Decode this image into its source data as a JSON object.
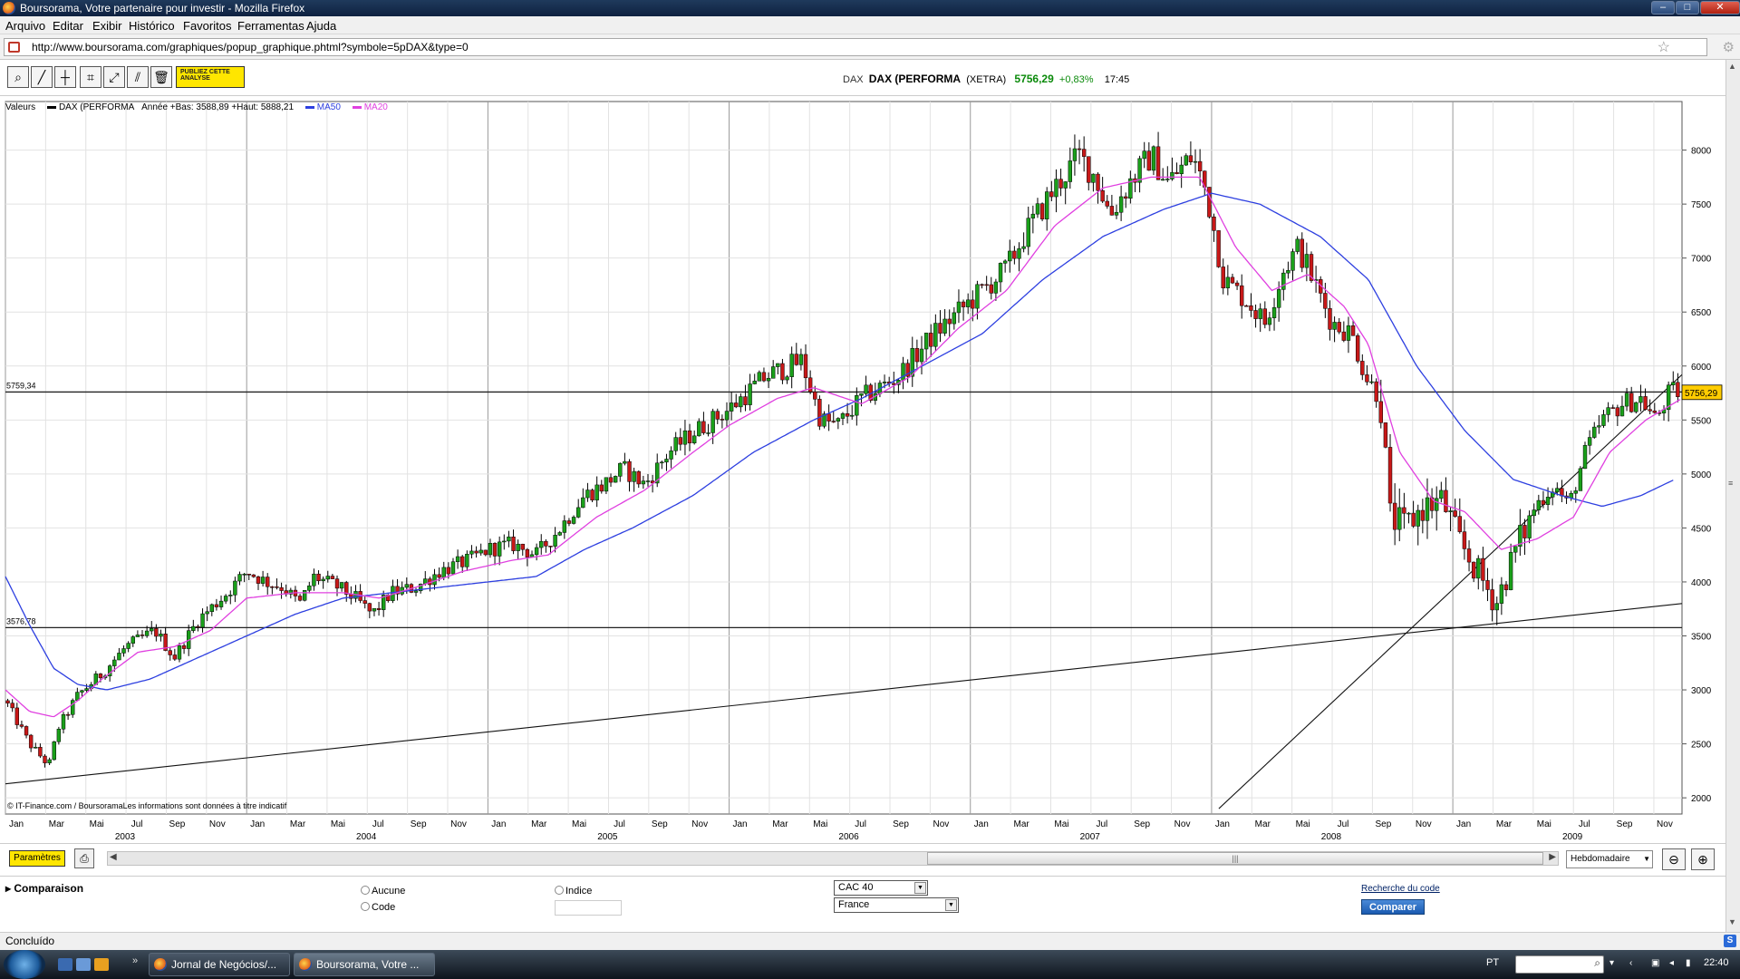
{
  "window": {
    "title": "Boursorama, Votre partenaire pour investir - Mozilla Firefox",
    "min": "–",
    "max": "□",
    "close": "✕"
  },
  "menu": [
    "Arquivo",
    "Editar",
    "Exibir",
    "Histórico",
    "Favoritos",
    "Ferramentas",
    "Ajuda"
  ],
  "address": {
    "url": "http://www.boursorama.com/graphiques/popup_graphique.phtml?symbole=5pDAX&type=0"
  },
  "toolbar": {
    "publish_label": "PUBLIEZ CETTE ANALYSE"
  },
  "quote": {
    "symbol": "DAX",
    "name": "DAX (PERFORMA",
    "market": "(XETRA)",
    "price": "5756,29",
    "change": "+0,83%",
    "time": "17:45"
  },
  "legend": {
    "label": "Valeurs",
    "series": "DAX (PERFORMA",
    "range": "Année +Bas: 3588,89 +Haut: 5888,21",
    "ma50": "MA50",
    "ma20": "MA20"
  },
  "colors": {
    "up": "#1aa01a",
    "down": "#c81818",
    "ma50": "#2d3fe0",
    "ma20": "#e040e0",
    "price_tag": "#ffcc00"
  },
  "chart_data": {
    "type": "candlestick",
    "title": "DAX (PERFORMA",
    "frequency": "Hebdomadaire",
    "ylim": [
      1850,
      8450
    ],
    "y_ticks": [
      2000,
      2500,
      3000,
      3500,
      4000,
      4500,
      5000,
      5500,
      6000,
      6500,
      7000,
      7500,
      8000
    ],
    "x_month_labels": [
      "Jan",
      "Mar",
      "Mai",
      "Jul",
      "Sep",
      "Nov",
      "Jan",
      "Mar",
      "Mai",
      "Jul",
      "Sep",
      "Nov",
      "Jan",
      "Mar",
      "Mai",
      "Jul",
      "Sep",
      "Nov",
      "Jan",
      "Mar",
      "Mai",
      "Jul",
      "Sep",
      "Nov",
      "Jan",
      "Mar",
      "Mai",
      "Jul",
      "Sep",
      "Nov",
      "Jan",
      "Mar",
      "Mai",
      "Jul",
      "Sep",
      "Nov",
      "Jan",
      "Mar",
      "Mai",
      "Jul",
      "Sep",
      "Nov"
    ],
    "x_year_labels": [
      "2003",
      "2004",
      "2005",
      "2006",
      "2007",
      "2008",
      "2009"
    ],
    "x_range": [
      2003.0,
      2009.95
    ],
    "horizontal_lines": [
      {
        "label": "5759,34",
        "value": 5759.34
      },
      {
        "label": "3576,78",
        "value": 3576.78
      }
    ],
    "trend_lines": [
      {
        "from": [
          2003.0,
          2130
        ],
        "to": [
          2009.95,
          3800
        ]
      },
      {
        "from": [
          2008.03,
          1900
        ],
        "to": [
          2009.95,
          5920
        ]
      }
    ],
    "last_price_label": "5756,29",
    "source_note": "© IT-Finance.com / BoursoramaLes informations sont données à titre indicatif",
    "close_path": [
      [
        2003.0,
        2900
      ],
      [
        2003.1,
        2500
      ],
      [
        2003.18,
        2300
      ],
      [
        2003.22,
        2650
      ],
      [
        2003.3,
        2950
      ],
      [
        2003.4,
        3150
      ],
      [
        2003.5,
        3400
      ],
      [
        2003.62,
        3550
      ],
      [
        2003.7,
        3300
      ],
      [
        2003.8,
        3650
      ],
      [
        2003.92,
        3900
      ],
      [
        2004.0,
        4100
      ],
      [
        2004.08,
        4000
      ],
      [
        2004.15,
        3950
      ],
      [
        2004.22,
        3800
      ],
      [
        2004.28,
        4050
      ],
      [
        2004.38,
        3950
      ],
      [
        2004.45,
        3850
      ],
      [
        2004.52,
        3700
      ],
      [
        2004.6,
        3900
      ],
      [
        2004.7,
        3950
      ],
      [
        2004.8,
        4100
      ],
      [
        2004.92,
        4200
      ],
      [
        2005.0,
        4300
      ],
      [
        2005.1,
        4350
      ],
      [
        2005.2,
        4250
      ],
      [
        2005.3,
        4500
      ],
      [
        2005.4,
        4800
      ],
      [
        2005.48,
        4900
      ],
      [
        2005.56,
        5050
      ],
      [
        2005.65,
        4900
      ],
      [
        2005.75,
        5200
      ],
      [
        2005.86,
        5400
      ],
      [
        2006.0,
        5600
      ],
      [
        2006.15,
        5900
      ],
      [
        2006.3,
        6050
      ],
      [
        2006.38,
        5500
      ],
      [
        2006.45,
        5450
      ],
      [
        2006.55,
        5700
      ],
      [
        2006.7,
        5900
      ],
      [
        2006.85,
        6300
      ],
      [
        2007.0,
        6600
      ],
      [
        2007.15,
        6900
      ],
      [
        2007.22,
        7200
      ],
      [
        2007.35,
        7650
      ],
      [
        2007.45,
        7950
      ],
      [
        2007.52,
        7750
      ],
      [
        2007.58,
        7400
      ],
      [
        2007.66,
        7700
      ],
      [
        2007.75,
        7950
      ],
      [
        2007.82,
        7700
      ],
      [
        2007.92,
        7950
      ],
      [
        2007.98,
        7600
      ],
      [
        2008.05,
        6800
      ],
      [
        2008.15,
        6600
      ],
      [
        2008.22,
        6400
      ],
      [
        2008.3,
        6900
      ],
      [
        2008.36,
        7100
      ],
      [
        2008.42,
        6800
      ],
      [
        2008.5,
        6400
      ],
      [
        2008.58,
        6300
      ],
      [
        2008.64,
        5900
      ],
      [
        2008.7,
        5700
      ],
      [
        2008.74,
        4600
      ],
      [
        2008.8,
        4500
      ],
      [
        2008.88,
        4700
      ],
      [
        2008.96,
        4750
      ],
      [
        2009.02,
        4400
      ],
      [
        2009.1,
        4100
      ],
      [
        2009.18,
        3800
      ],
      [
        2009.26,
        4300
      ],
      [
        2009.34,
        4700
      ],
      [
        2009.42,
        4900
      ],
      [
        2009.48,
        4700
      ],
      [
        2009.55,
        5200
      ],
      [
        2009.62,
        5500
      ],
      [
        2009.7,
        5650
      ],
      [
        2009.78,
        5700
      ],
      [
        2009.84,
        5500
      ],
      [
        2009.9,
        5760
      ],
      [
        2009.95,
        5756
      ]
    ],
    "ma20_path": [
      [
        2003.0,
        3000
      ],
      [
        2003.1,
        2800
      ],
      [
        2003.2,
        2750
      ],
      [
        2003.3,
        2900
      ],
      [
        2003.4,
        3100
      ],
      [
        2003.55,
        3350
      ],
      [
        2003.7,
        3400
      ],
      [
        2003.85,
        3550
      ],
      [
        2004.0,
        3850
      ],
      [
        2004.2,
        3900
      ],
      [
        2004.4,
        3900
      ],
      [
        2004.55,
        3850
      ],
      [
        2004.7,
        3950
      ],
      [
        2004.9,
        4100
      ],
      [
        2005.1,
        4200
      ],
      [
        2005.25,
        4250
      ],
      [
        2005.45,
        4600
      ],
      [
        2005.65,
        4850
      ],
      [
        2005.85,
        5200
      ],
      [
        2006.0,
        5450
      ],
      [
        2006.2,
        5700
      ],
      [
        2006.35,
        5800
      ],
      [
        2006.55,
        5650
      ],
      [
        2006.75,
        5900
      ],
      [
        2006.95,
        6350
      ],
      [
        2007.15,
        6700
      ],
      [
        2007.35,
        7300
      ],
      [
        2007.55,
        7650
      ],
      [
        2007.75,
        7750
      ],
      [
        2007.95,
        7750
      ],
      [
        2008.1,
        7100
      ],
      [
        2008.25,
        6700
      ],
      [
        2008.4,
        6850
      ],
      [
        2008.55,
        6550
      ],
      [
        2008.65,
        6200
      ],
      [
        2008.78,
        5200
      ],
      [
        2008.92,
        4750
      ],
      [
        2009.05,
        4650
      ],
      [
        2009.2,
        4300
      ],
      [
        2009.35,
        4400
      ],
      [
        2009.5,
        4600
      ],
      [
        2009.65,
        5200
      ],
      [
        2009.8,
        5500
      ],
      [
        2009.95,
        5700
      ]
    ],
    "ma50_path": [
      [
        2003.0,
        4050
      ],
      [
        2003.1,
        3600
      ],
      [
        2003.2,
        3200
      ],
      [
        2003.3,
        3050
      ],
      [
        2003.42,
        3000
      ],
      [
        2003.6,
        3100
      ],
      [
        2003.8,
        3300
      ],
      [
        2004.0,
        3500
      ],
      [
        2004.2,
        3700
      ],
      [
        2004.4,
        3850
      ],
      [
        2004.6,
        3900
      ],
      [
        2004.8,
        3950
      ],
      [
        2005.0,
        4000
      ],
      [
        2005.2,
        4050
      ],
      [
        2005.4,
        4300
      ],
      [
        2005.6,
        4500
      ],
      [
        2005.85,
        4800
      ],
      [
        2006.1,
        5200
      ],
      [
        2006.35,
        5500
      ],
      [
        2006.55,
        5700
      ],
      [
        2006.8,
        6000
      ],
      [
        2007.05,
        6300
      ],
      [
        2007.3,
        6800
      ],
      [
        2007.55,
        7200
      ],
      [
        2007.8,
        7450
      ],
      [
        2008.0,
        7600
      ],
      [
        2008.2,
        7500
      ],
      [
        2008.45,
        7200
      ],
      [
        2008.65,
        6800
      ],
      [
        2008.85,
        6000
      ],
      [
        2009.05,
        5400
      ],
      [
        2009.25,
        4950
      ],
      [
        2009.45,
        4800
      ],
      [
        2009.62,
        4700
      ],
      [
        2009.78,
        4800
      ],
      [
        2009.92,
        4950
      ]
    ]
  },
  "footer": {
    "params_label": "Paramètres",
    "scroll_grip": "|||",
    "period": "Hebdomadaire"
  },
  "compare": {
    "title": "Comparaison",
    "opt_none": "Aucune",
    "opt_code": "Code",
    "opt_index": "Indice",
    "index_select": "CAC 40",
    "country_select": "France",
    "search_code": "Recherche du code",
    "compare_button": "Comparer"
  },
  "status": {
    "text": "Concluído"
  },
  "taskbar": {
    "task1": "Jornal de Negócios/...",
    "task2": "Boursorama, Votre ...",
    "lang": "PT",
    "clock": "22:40"
  }
}
